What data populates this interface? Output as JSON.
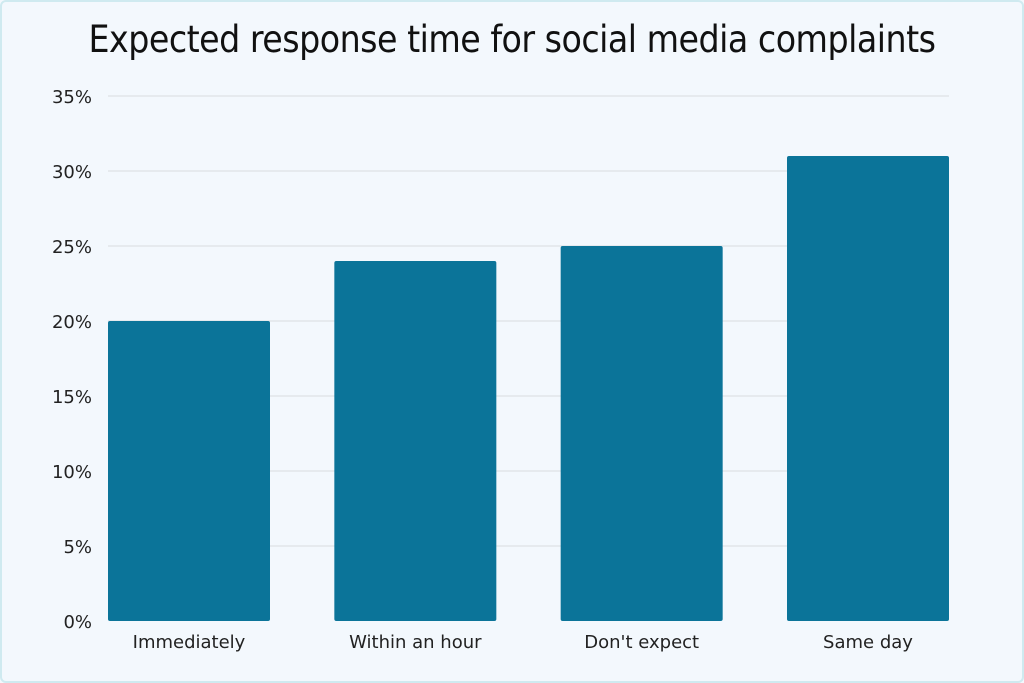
{
  "chart_data": {
    "type": "bar",
    "title": "Expected response time for social media complaints",
    "categories": [
      "Immediately",
      "Within an hour",
      "Don't expect",
      "Same day"
    ],
    "values": [
      20,
      24,
      25,
      31
    ],
    "ylim": [
      0,
      35
    ],
    "yticks": [
      0,
      5,
      10,
      15,
      20,
      25,
      30,
      35
    ],
    "ytick_format": "%",
    "xlabel": "",
    "ylabel": "",
    "grid": true,
    "bar_color": "#0b7499"
  }
}
